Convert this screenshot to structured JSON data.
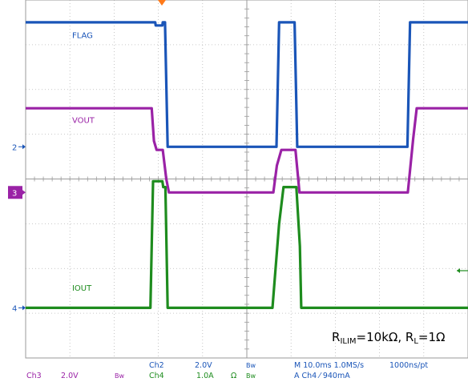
{
  "chart_data": {
    "type": "line",
    "x_range": [
      0,
      100
    ],
    "grid": true,
    "x_divisions": 10,
    "y_divisions": 8,
    "y_range": [
      0,
      8
    ],
    "trigger_marker": {
      "x": 30.8,
      "color": "#ff7a1a"
    },
    "series": [
      {
        "name": "FLAG",
        "color": "#1a55b8",
        "label_pos": {
          "x": 10.5,
          "y": 7.15
        },
        "points": [
          [
            0,
            7.5
          ],
          [
            29.3,
            7.5
          ],
          [
            29.4,
            7.43
          ],
          [
            30.9,
            7.43
          ],
          [
            31.0,
            7.5
          ],
          [
            31.5,
            7.5
          ],
          [
            32.1,
            4.72
          ],
          [
            56.7,
            4.72
          ],
          [
            57.3,
            7.5
          ],
          [
            60.8,
            7.5
          ],
          [
            61.4,
            4.72
          ],
          [
            86.3,
            4.72
          ],
          [
            86.9,
            7.5
          ],
          [
            100,
            7.5
          ]
        ]
      },
      {
        "name": "VOUT",
        "color": "#9a22a6",
        "label_pos": {
          "x": 10.5,
          "y": 5.25
        },
        "points": [
          [
            0,
            5.58
          ],
          [
            28.0,
            5.58
          ],
          [
            28.5,
            5.58
          ],
          [
            29.0,
            4.85
          ],
          [
            29.6,
            4.65
          ],
          [
            31.0,
            4.65
          ],
          [
            31.8,
            4.0
          ],
          [
            32.4,
            3.7
          ],
          [
            56.0,
            3.7
          ],
          [
            56.8,
            4.3
          ],
          [
            57.8,
            4.65
          ],
          [
            61.0,
            4.65
          ],
          [
            61.9,
            3.7
          ],
          [
            86.4,
            3.7
          ],
          [
            87.6,
            4.9
          ],
          [
            88.4,
            5.58
          ],
          [
            100,
            5.58
          ]
        ]
      },
      {
        "name": "IOUT",
        "color": "#1e8c1e",
        "label_pos": {
          "x": 10.5,
          "y": 1.5
        },
        "points": [
          [
            0,
            1.12
          ],
          [
            28.2,
            1.12
          ],
          [
            28.8,
            3.95
          ],
          [
            30.9,
            3.95
          ],
          [
            31.1,
            3.82
          ],
          [
            31.6,
            3.82
          ],
          [
            32.1,
            1.12
          ],
          [
            55.8,
            1.12
          ],
          [
            57.3,
            3.0
          ],
          [
            58.3,
            3.82
          ],
          [
            61.2,
            3.82
          ],
          [
            62.0,
            2.5
          ],
          [
            62.3,
            1.12
          ],
          [
            100,
            1.12
          ]
        ]
      }
    ],
    "channel_markers": [
      {
        "label": "2",
        "y": 4.72,
        "style": "plain"
      },
      {
        "label": "3",
        "y": 3.7,
        "style": "box"
      },
      {
        "label": "4",
        "y": 1.12,
        "style": "plain"
      }
    ],
    "annotation": {
      "text_main_1": "R",
      "text_sub_1": "ILIM",
      "text_main_2": "=10kΩ, R",
      "text_sub_2": "L",
      "text_main_3": "=1Ω"
    },
    "footer": {
      "ch3_name": "Ch3",
      "ch3_scale": "2.0V",
      "ch3_bw": "Bw",
      "ch2_name": "Ch2",
      "ch2_scale": "2.0V",
      "ch2_bw": "Bw",
      "ch4_name": "Ch4",
      "ch4_scale": "1.0A",
      "ch4_ohm": "Ω",
      "ch4_bw": "Bw",
      "timebase": "M 10.0ms 1.0MS/s",
      "record": "1000ns/pt",
      "trigger": "A  Ch4  ⁄  940mA"
    }
  }
}
